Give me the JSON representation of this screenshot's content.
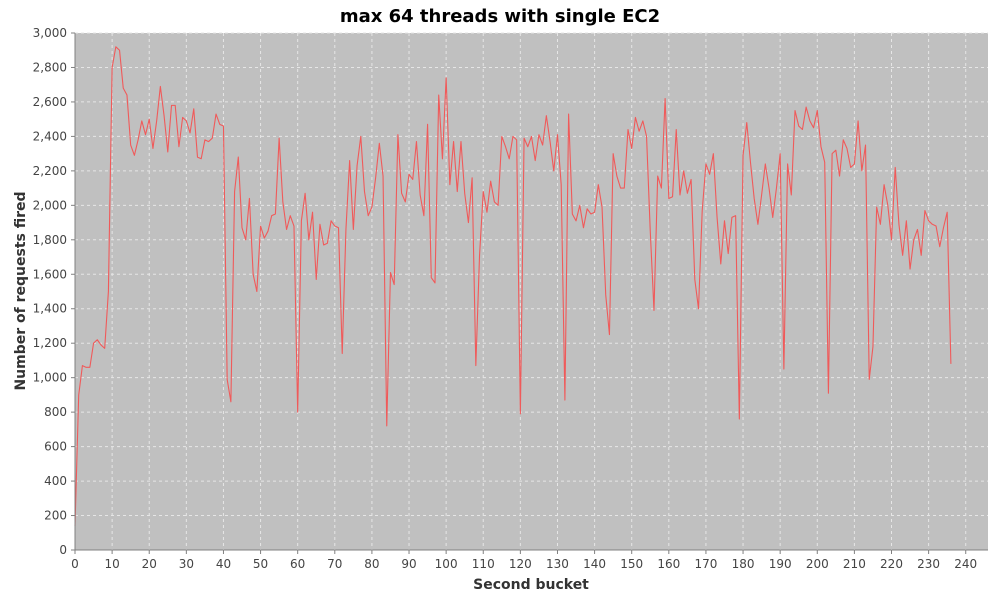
{
  "chart_data": {
    "type": "line",
    "title": "max 64 threads with single EC2",
    "xlabel": "Second bucket",
    "ylabel": "Number of requests fired",
    "xlim": [
      0,
      246
    ],
    "ylim": [
      0,
      3000
    ],
    "x_ticks": [
      0,
      10,
      20,
      30,
      40,
      50,
      60,
      70,
      80,
      90,
      100,
      110,
      120,
      130,
      140,
      150,
      160,
      170,
      180,
      190,
      200,
      210,
      220,
      230,
      240
    ],
    "y_ticks": [
      0,
      200,
      400,
      600,
      800,
      1000,
      1200,
      1400,
      1600,
      1800,
      2000,
      2200,
      2400,
      2600,
      2800,
      3000
    ],
    "y_tick_labels": [
      "0",
      "200",
      "400",
      "600",
      "800",
      "1,000",
      "1,200",
      "1,400",
      "1,600",
      "1,800",
      "2,000",
      "2,200",
      "2,400",
      "2,600",
      "2,800",
      "3,000"
    ],
    "grid": true,
    "legend": "none",
    "colors": {
      "line": "#f05a5a",
      "plot_background": "#c0c0c0",
      "grid": "#e6e6e6"
    },
    "series": [
      {
        "x_start": 0,
        "x_step": 1,
        "values": [
          140,
          900,
          1070,
          1060,
          1060,
          1200,
          1220,
          1190,
          1170,
          1500,
          2800,
          2920,
          2900,
          2680,
          2640,
          2350,
          2290,
          2380,
          2490,
          2410,
          2500,
          2330,
          2490,
          2690,
          2520,
          2310,
          2580,
          2580,
          2340,
          2510,
          2490,
          2420,
          2560,
          2280,
          2270,
          2380,
          2370,
          2390,
          2530,
          2470,
          2460,
          990,
          860,
          2080,
          2280,
          1870,
          1800,
          2040,
          1600,
          1500,
          1880,
          1810,
          1850,
          1940,
          1950,
          2390,
          2020,
          1860,
          1940,
          1880,
          800,
          1910,
          2070,
          1800,
          1960,
          1570,
          1890,
          1770,
          1780,
          1910,
          1880,
          1870,
          1140,
          1860,
          2260,
          1860,
          2230,
          2400,
          2080,
          1940,
          1990,
          2160,
          2360,
          2170,
          720,
          1610,
          1540,
          2410,
          2070,
          2020,
          2180,
          2150,
          2370,
          2060,
          1940,
          2470,
          1580,
          1550,
          2640,
          2270,
          2740,
          2120,
          2370,
          2080,
          2370,
          2070,
          1900,
          2160,
          1070,
          1710,
          2080,
          1960,
          2140,
          2020,
          2000,
          2400,
          2340,
          2270,
          2400,
          2380,
          790,
          2390,
          2340,
          2400,
          2260,
          2410,
          2350,
          2520,
          2370,
          2200,
          2410,
          2120,
          870,
          2530,
          1950,
          1910,
          2000,
          1870,
          1980,
          1950,
          1960,
          2120,
          1990,
          1480,
          1250,
          2300,
          2170,
          2100,
          2100,
          2440,
          2330,
          2510,
          2430,
          2490,
          2400,
          1850,
          1390,
          2170,
          2100,
          2620,
          2040,
          2050,
          2440,
          2060,
          2200,
          2070,
          2150,
          1570,
          1400,
          1970,
          2240,
          2180,
          2300,
          1930,
          1660,
          1910,
          1720,
          1930,
          1940,
          760,
          2290,
          2480,
          2250,
          2040,
          1890,
          2060,
          2240,
          2100,
          1930,
          2100,
          2300,
          1050,
          2240,
          2060,
          2550,
          2460,
          2440,
          2570,
          2490,
          2450,
          2550,
          2340,
          2250,
          910,
          2300,
          2320,
          2170,
          2380,
          2330,
          2220,
          2240,
          2490,
          2200,
          2350,
          990,
          1180,
          1990,
          1890,
          2120,
          2000,
          1800,
          2220,
          1890,
          1710,
          1910,
          1630,
          1800,
          1860,
          1710,
          1970,
          1910,
          1890,
          1880,
          1760,
          1870,
          1960,
          1080
        ]
      }
    ]
  }
}
